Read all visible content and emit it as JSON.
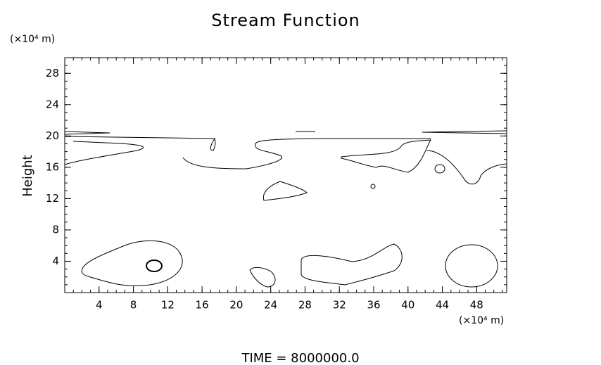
{
  "chart_data": {
    "type": "contour",
    "title": "Stream Function",
    "ylabel": "Height",
    "yunit": "(×10⁴ m)",
    "xunit": "(×10⁴ m)",
    "annotation": "TIME = 8000000.0",
    "xlim": [
      0,
      51.5
    ],
    "xticks": [
      4,
      8,
      12,
      16,
      20,
      24,
      28,
      32,
      36,
      40,
      44,
      48
    ],
    "ylim": [
      0,
      30
    ],
    "yticks": [
      4,
      8,
      12,
      16,
      20,
      24,
      28
    ]
  }
}
